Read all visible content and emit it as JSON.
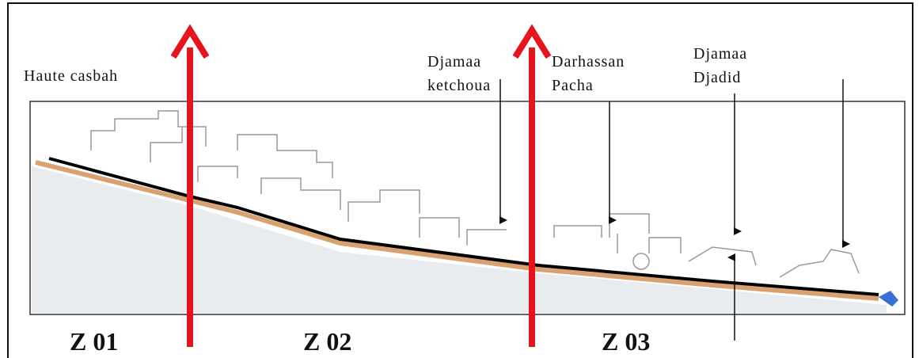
{
  "labels": [
    {
      "lines": [
        "Haute casbah"
      ]
    },
    {
      "lines": [
        "Djamaa",
        "ketchoua"
      ]
    },
    {
      "lines": [
        "Darhassan",
        "Pacha"
      ]
    },
    {
      "lines": [
        "Djamaa",
        "Djadid"
      ]
    }
  ],
  "zones": [
    "Z 01",
    "Z 02",
    "Z 03"
  ]
}
